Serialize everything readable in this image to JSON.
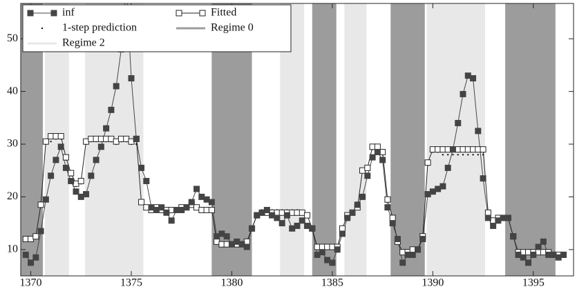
{
  "chart_data": {
    "type": "line",
    "x": [
      1369.75,
      1370,
      1370.25,
      1370.5,
      1370.75,
      1371,
      1371.25,
      1371.5,
      1371.75,
      1372,
      1372.25,
      1372.5,
      1372.75,
      1373,
      1373.25,
      1373.5,
      1373.75,
      1374,
      1374.25,
      1374.5,
      1374.75,
      1375,
      1375.25,
      1375.5,
      1375.75,
      1376,
      1376.25,
      1376.5,
      1376.75,
      1377,
      1377.25,
      1377.5,
      1377.75,
      1378,
      1378.25,
      1378.5,
      1378.75,
      1379,
      1379.25,
      1379.5,
      1379.75,
      1380,
      1380.25,
      1380.5,
      1380.75,
      1381,
      1381.25,
      1381.5,
      1381.75,
      1382,
      1382.25,
      1382.5,
      1382.75,
      1383,
      1383.25,
      1383.5,
      1383.75,
      1384,
      1384.25,
      1384.5,
      1384.75,
      1385,
      1385.25,
      1385.5,
      1385.75,
      1386,
      1386.25,
      1386.5,
      1386.75,
      1387,
      1387.25,
      1387.5,
      1387.75,
      1388,
      1388.25,
      1388.5,
      1388.75,
      1389,
      1389.25,
      1389.5,
      1389.75,
      1390,
      1390.25,
      1390.5,
      1390.75,
      1391,
      1391.25,
      1391.5,
      1391.75,
      1392,
      1392.25,
      1392.5,
      1392.75,
      1393,
      1393.25,
      1393.5,
      1393.75,
      1394,
      1394.25,
      1394.5,
      1394.75,
      1395,
      1395.25,
      1395.5,
      1395.75,
      1396,
      1396.25,
      1396.5
    ],
    "series": [
      {
        "name": "inf",
        "color": "#444444",
        "marker": "filled",
        "values": [
          9,
          7.5,
          8.5,
          13.5,
          19.5,
          24,
          27,
          29.5,
          25.5,
          23,
          21,
          20,
          20.5,
          24,
          27,
          29.5,
          33,
          36.5,
          41,
          48,
          60,
          42.5,
          31,
          25.5,
          23,
          18,
          17.5,
          18,
          17,
          15.5,
          17.5,
          17.5,
          18,
          19,
          21.5,
          20,
          19.5,
          19,
          12.5,
          13,
          12.5,
          11,
          11.5,
          11,
          10.5,
          14,
          16.5,
          17,
          17.5,
          16.5,
          16,
          15,
          16.5,
          14,
          14.5,
          15.5,
          14.5,
          14,
          9,
          9.5,
          8,
          7.5,
          10,
          13,
          16,
          17,
          18.5,
          20,
          24,
          27.5,
          28.5,
          27,
          18,
          15,
          12,
          7.5,
          9,
          9,
          10,
          12,
          20.5,
          21,
          21.5,
          22,
          25.5,
          29,
          34,
          39.5,
          43,
          42.5,
          32.5,
          23.5,
          16,
          14.5,
          15.5,
          16,
          16,
          12.5,
          9,
          8.5,
          7.5,
          9,
          10.5,
          11.5,
          9,
          9,
          8.5,
          9
        ]
      },
      {
        "name": "Fitted",
        "color": "#222222",
        "marker": "hollow",
        "values": [
          12,
          12,
          12.5,
          18.5,
          30.5,
          31.5,
          31.5,
          31.5,
          27.5,
          24.5,
          22.5,
          23,
          30.5,
          31,
          31,
          31,
          31,
          31,
          30.5,
          31,
          31,
          30.5,
          31,
          19,
          18,
          17.5,
          18,
          17.5,
          17.5,
          17.5,
          17.5,
          18,
          18,
          18.5,
          18,
          17.5,
          17.5,
          17.5,
          11.5,
          11,
          11,
          11,
          11,
          11,
          11.5,
          14,
          16.5,
          17,
          17,
          17,
          17,
          17,
          17,
          17,
          17,
          17,
          16.5,
          14,
          10.5,
          10.5,
          10.5,
          10.5,
          10.5,
          14,
          16.5,
          17,
          18,
          25,
          25.5,
          29.5,
          29.5,
          28.5,
          19.5,
          16,
          11.5,
          9.5,
          9.5,
          10,
          10,
          12.5,
          26.5,
          29,
          29,
          29,
          29,
          29,
          29,
          29,
          29,
          29,
          29,
          29,
          17,
          15.5,
          16,
          16,
          16,
          12.5,
          9.5,
          9.5,
          9.5,
          9.5,
          9.5,
          9.5,
          9.5,
          9,
          9,
          9
        ]
      },
      {
        "name": "1-step prediction",
        "color": "#111111",
        "marker": "dot",
        "values": [
          12,
          12,
          12.5,
          18,
          30,
          30.5,
          31,
          31,
          27,
          24,
          22,
          22.5,
          30,
          30.5,
          30.5,
          30.5,
          30.5,
          30.5,
          30,
          30.5,
          30.5,
          30,
          30,
          19,
          18,
          17.5,
          18,
          17.5,
          17.5,
          17.5,
          17.5,
          18,
          18,
          18.5,
          18,
          17.5,
          17.5,
          17.5,
          11.5,
          11,
          11,
          11,
          11,
          11,
          11.5,
          14,
          16.5,
          17.5,
          17.5,
          17.5,
          17.5,
          17.5,
          17.5,
          17.5,
          17.5,
          17,
          16.5,
          14,
          10.5,
          10.5,
          10.5,
          10.5,
          10.5,
          14,
          16.5,
          17,
          18,
          25,
          25.5,
          29,
          29,
          28,
          19.5,
          16,
          11.5,
          9.5,
          9.5,
          10,
          10,
          12.5,
          26,
          28.5,
          28.5,
          28,
          28,
          28,
          28,
          28,
          28,
          28,
          28,
          28,
          17,
          15.5,
          16,
          16,
          16,
          12.5,
          9.5,
          9.5,
          9.5,
          9.5,
          9.5,
          9.5,
          9.5,
          9,
          9,
          9
        ]
      }
    ],
    "regimes": [
      {
        "name": "Regime 0",
        "color": "#9c9c9c",
        "spans": [
          [
            1369.5,
            1370.6
          ],
          [
            1379.0,
            1381.0
          ],
          [
            1384.0,
            1385.2
          ],
          [
            1387.9,
            1389.6
          ],
          [
            1393.6,
            1396.1
          ]
        ]
      },
      {
        "name": "Regime 2",
        "color": "#e8e8e8",
        "spans": [
          [
            1370.7,
            1371.9
          ],
          [
            1372.7,
            1375.6
          ],
          [
            1382.4,
            1383.6
          ],
          [
            1385.6,
            1386.7
          ],
          [
            1389.7,
            1392.6
          ]
        ]
      }
    ],
    "xlim": [
      1369.5,
      1397
    ],
    "ylim": [
      5,
      56.7
    ],
    "xticks": [
      1370,
      1375,
      1380,
      1385,
      1390,
      1395
    ],
    "yticks": [
      10,
      20,
      30,
      40,
      50
    ]
  }
}
